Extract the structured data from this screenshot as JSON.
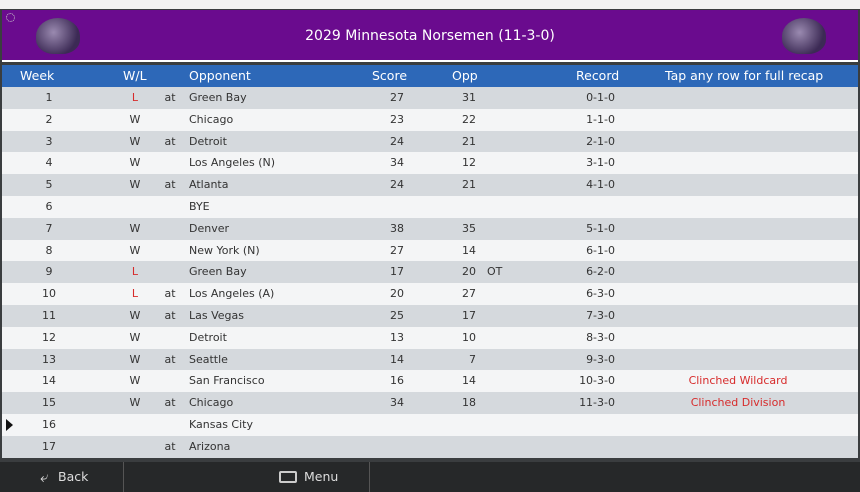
{
  "header": {
    "title": "2029 Minnesota Norsemen (11-3-0)"
  },
  "table": {
    "columns": [
      "Week",
      "W/L",
      "Opponent",
      "Score",
      "Opp",
      "Record",
      "Tap any row for full recap"
    ],
    "rows": [
      {
        "week": "1",
        "result": "L",
        "site": "at",
        "opponent": "Green Bay",
        "score": "27",
        "opp": "31",
        "record": "0-1-0"
      },
      {
        "week": "2",
        "result": "W",
        "opponent": "Chicago",
        "score": "23",
        "opp": "22",
        "record": "1-1-0"
      },
      {
        "week": "3",
        "result": "W",
        "site": "at",
        "opponent": "Detroit",
        "score": "24",
        "opp": "21",
        "record": "2-1-0"
      },
      {
        "week": "4",
        "result": "W",
        "opponent": "Los Angeles (N)",
        "score": "34",
        "opp": "12",
        "record": "3-1-0"
      },
      {
        "week": "5",
        "result": "W",
        "site": "at",
        "opponent": "Atlanta",
        "score": "24",
        "opp": "21",
        "record": "4-1-0"
      },
      {
        "week": "6",
        "opponent": "BYE"
      },
      {
        "week": "7",
        "result": "W",
        "opponent": "Denver",
        "score": "38",
        "opp": "35",
        "record": "5-1-0"
      },
      {
        "week": "8",
        "result": "W",
        "opponent": "New York (N)",
        "score": "27",
        "opp": "14",
        "record": "6-1-0"
      },
      {
        "week": "9",
        "result": "L",
        "opponent": "Green Bay",
        "score": "17",
        "opp": "20",
        "ot": "OT",
        "record": "6-2-0"
      },
      {
        "week": "10",
        "result": "L",
        "site": "at",
        "opponent": "Los Angeles (A)",
        "score": "20",
        "opp": "27",
        "record": "6-3-0"
      },
      {
        "week": "11",
        "result": "W",
        "site": "at",
        "opponent": "Las Vegas",
        "score": "25",
        "opp": "17",
        "record": "7-3-0"
      },
      {
        "week": "12",
        "result": "W",
        "opponent": "Detroit",
        "score": "13",
        "opp": "10",
        "record": "8-3-0"
      },
      {
        "week": "13",
        "result": "W",
        "site": "at",
        "opponent": "Seattle",
        "score": "14",
        "opp": "7",
        "record": "9-3-0"
      },
      {
        "week": "14",
        "result": "W",
        "opponent": "San Francisco",
        "score": "16",
        "opp": "14",
        "record": "10-3-0",
        "note": "Clinched Wildcard"
      },
      {
        "week": "15",
        "result": "W",
        "site": "at",
        "opponent": "Chicago",
        "score": "34",
        "opp": "18",
        "record": "11-3-0",
        "note": "Clinched Division"
      },
      {
        "week": "16",
        "opponent": "Kansas City"
      },
      {
        "week": "17",
        "site": "at",
        "opponent": "Arizona"
      }
    ]
  },
  "footer": {
    "back": "Back",
    "menu": "Menu"
  }
}
